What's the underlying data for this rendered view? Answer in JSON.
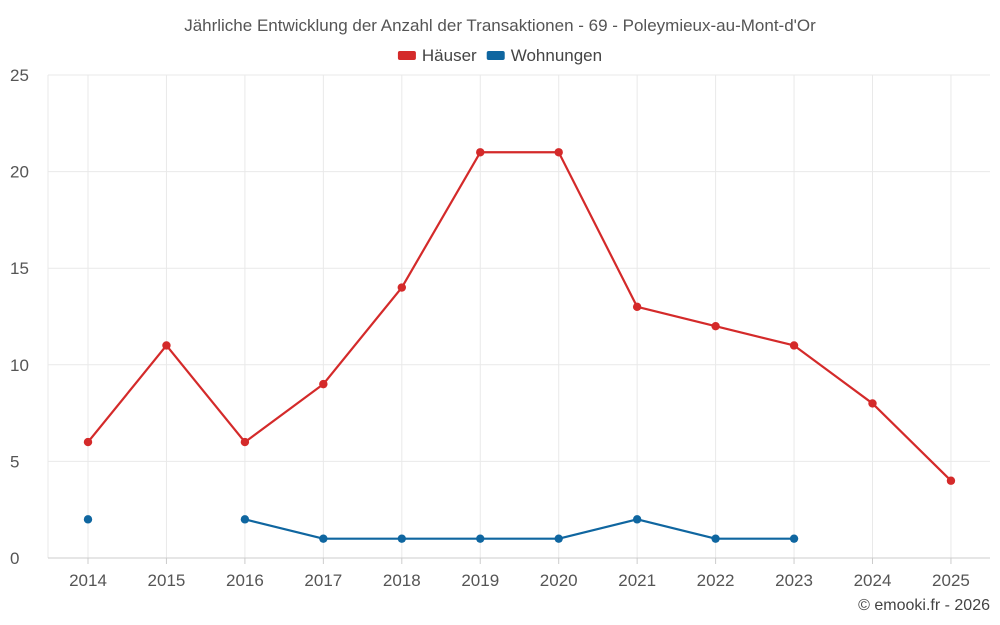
{
  "chart_data": {
    "type": "line",
    "title": "Jährliche Entwicklung der Anzahl der Transaktionen - 69 - Poleymieux-au-Mont-d'Or",
    "categories": [
      "2014",
      "2015",
      "2016",
      "2017",
      "2018",
      "2019",
      "2020",
      "2021",
      "2022",
      "2023",
      "2024",
      "2025"
    ],
    "ylim": [
      0,
      25
    ],
    "yticks": [
      0,
      5,
      10,
      15,
      20,
      25
    ],
    "grid": true,
    "legend_position": "top-center",
    "xlabel": "",
    "ylabel": "",
    "series": [
      {
        "name": "Häuser",
        "color": "#d42a2a",
        "values": [
          6,
          11,
          6,
          9,
          14,
          21,
          21,
          13,
          12,
          11,
          8,
          4
        ]
      },
      {
        "name": "Wohnungen",
        "color": "#0f66a0",
        "values": [
          2,
          null,
          2,
          1,
          1,
          1,
          1,
          2,
          1,
          1,
          null,
          null
        ]
      }
    ]
  },
  "credit": "© emooki.fr - 2026"
}
